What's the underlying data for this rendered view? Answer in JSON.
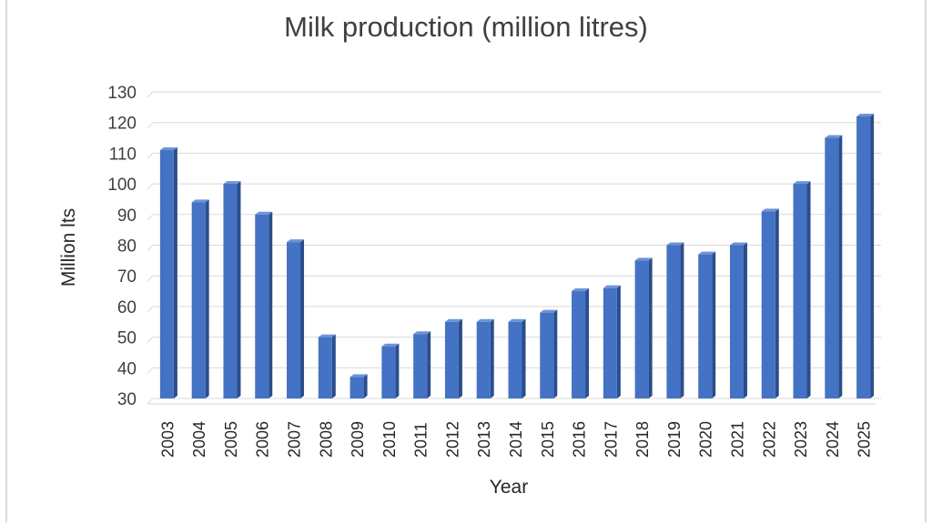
{
  "chart_data": {
    "type": "bar",
    "title": "Milk production (million litres)",
    "xlabel": "Year",
    "ylabel": "Million lts",
    "ylim": [
      30,
      130
    ],
    "yticks": [
      30,
      40,
      50,
      60,
      70,
      80,
      90,
      100,
      110,
      120,
      130
    ],
    "grid": true,
    "bar_color": "#4472c4",
    "categories": [
      "2003",
      "2004",
      "2005",
      "2006",
      "2007",
      "2008",
      "2009",
      "2010",
      "2011",
      "2012",
      "2013",
      "2014",
      "2015",
      "2016",
      "2017",
      "2018",
      "2019",
      "2020",
      "2021",
      "2022",
      "2023",
      "2024",
      "2025"
    ],
    "values": [
      111,
      94,
      100,
      90,
      81,
      50,
      37,
      47,
      51,
      55,
      55,
      55,
      58,
      65,
      66,
      75,
      80,
      77,
      80,
      91,
      100,
      115,
      122
    ]
  }
}
